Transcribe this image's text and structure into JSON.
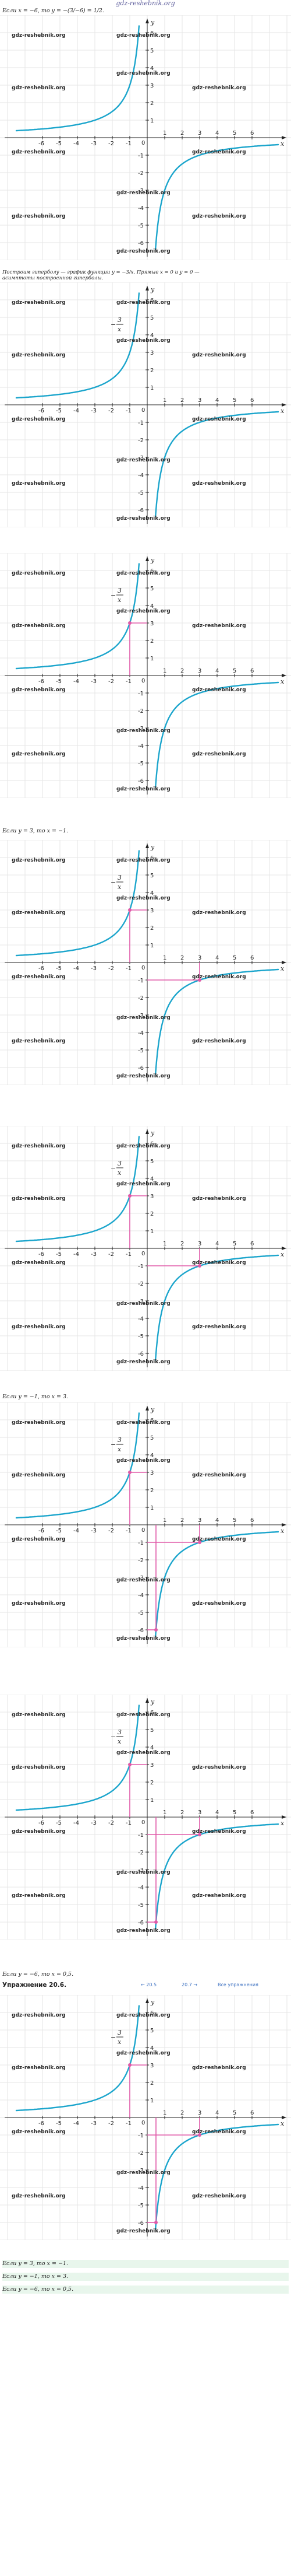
{
  "site": {
    "logo": "gdz-reshebnik.org"
  },
  "texts": {
    "t1": "Если x = −6, то y = −(3/−6) = 1/2.",
    "t2": "Построим гиперболу — график функции y = −3/x. Прямые x = 0 и y = 0 —",
    "t3": "асимптоты построенной гиперболы.",
    "t4": "Если y = 3, то x = −1.",
    "t5": "Если y = −1, то x = 3.",
    "t6": "Если y = −6, то x = 0,5.",
    "section": "Упражнение 20.6.",
    "a1": "Если y = 3, то x = −1.",
    "a2": "Если y = −1, то x = 3.",
    "a3": "Если y = −6, то x = 0,5."
  },
  "nav": {
    "prev": "← 20.5",
    "next": "20.7 →",
    "all": "Все упражнения"
  },
  "watermark": "gdz-reshebnik.org",
  "function_label": {
    "sign": "−",
    "numerator": "3",
    "denominator": "x"
  },
  "axes": {
    "x_name": "x",
    "y_name": "y",
    "origin": "0"
  },
  "x_ticks": [
    "-6",
    "-5",
    "-4",
    "-3",
    "-2",
    "-1",
    "1",
    "2",
    "3",
    "4",
    "5",
    "6"
  ],
  "y_ticks": [
    "6",
    "5",
    "4",
    "3",
    "2",
    "1",
    "-1",
    "-2",
    "-3",
    "-4",
    "-5",
    "-6"
  ],
  "colors": {
    "curve": "#1ba5cc",
    "guide": "#e05aa8",
    "grid": "#e5e5e5"
  },
  "graphs": [
    {
      "top": 26,
      "function_label": false,
      "guides": []
    },
    {
      "top": 484,
      "function_label": true,
      "guides": []
    },
    {
      "top": 948,
      "function_label": true,
      "guides": [
        [
          -1,
          3
        ]
      ]
    },
    {
      "top": 1440,
      "function_label": true,
      "guides": [
        [
          -1,
          3
        ],
        [
          3,
          -1
        ]
      ]
    },
    {
      "top": 1930,
      "function_label": true,
      "guides": [
        [
          -1,
          3
        ],
        [
          3,
          -1
        ]
      ]
    },
    {
      "top": 2404,
      "function_label": true,
      "guides": [
        [
          -1,
          3
        ],
        [
          3,
          -1
        ],
        [
          0.5,
          -6
        ]
      ]
    },
    {
      "top": 2905,
      "function_label": true,
      "guides": [
        [
          -1,
          3
        ],
        [
          3,
          -1
        ],
        [
          0.5,
          -6
        ]
      ]
    },
    {
      "top": 3420,
      "function_label": true,
      "guides": [
        [
          -1,
          3
        ],
        [
          3,
          -1
        ],
        [
          0.5,
          -6
        ]
      ]
    }
  ],
  "chart_data": {
    "type": "line",
    "function": "y = -3/x",
    "x_range": [
      -6.5,
      6.5
    ],
    "y_range": [
      -6.5,
      6.5
    ],
    "series": [
      {
        "x": [
          -6,
          -5,
          -4,
          -3,
          -2,
          -1.5,
          -1,
          -0.75,
          -0.5
        ],
        "y": [
          0.5,
          0.6,
          0.75,
          1,
          1.5,
          2,
          3,
          4,
          6
        ]
      },
      {
        "x": [
          0.5,
          0.75,
          1,
          1.5,
          2,
          3,
          4,
          5,
          6
        ],
        "y": [
          -6,
          -4,
          -3,
          -2,
          -1.5,
          -1,
          -0.75,
          -0.6,
          -0.5
        ]
      }
    ],
    "marked_points": [
      [
        -1,
        3
      ],
      [
        3,
        -1
      ],
      [
        0.5,
        -6
      ]
    ]
  }
}
